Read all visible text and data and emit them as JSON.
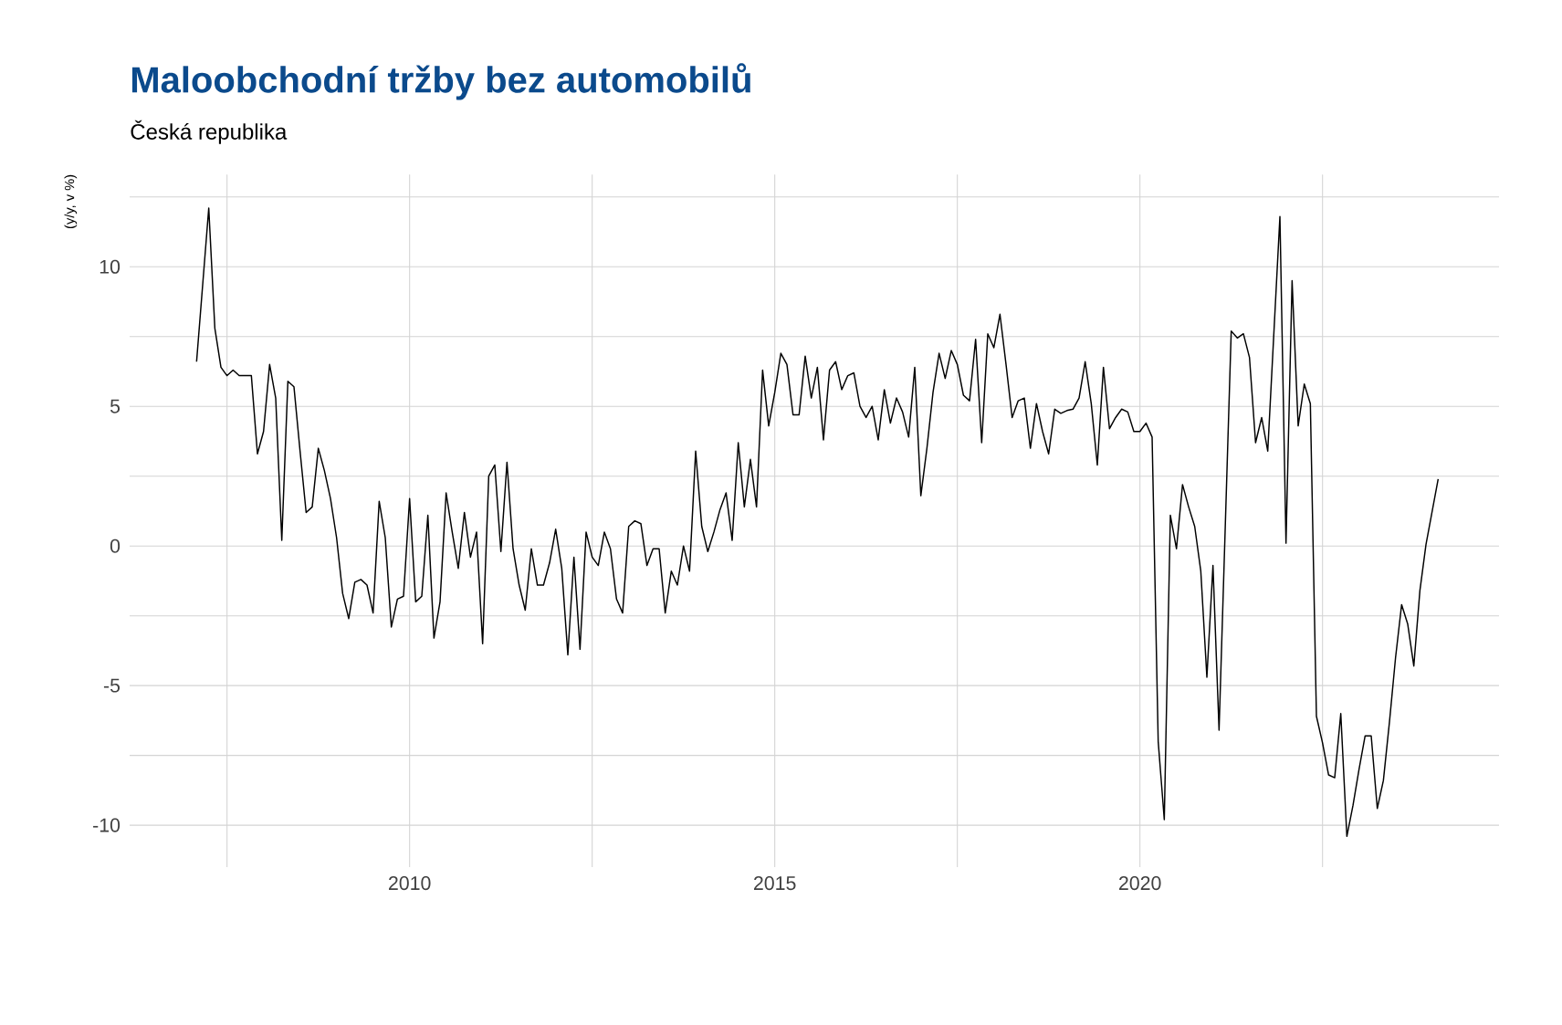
{
  "chart_data": {
    "type": "line",
    "title": "Maloobchodní tržby bez automobilů",
    "subtitle": "Česká republika",
    "ylabel": "(y/y, v %)",
    "x": [
      "2007-02",
      "2007-04",
      "2007-05",
      "2007-06",
      "2007-07",
      "2007-08",
      "2007-09",
      "2007-11",
      "2007-12",
      "2008-01",
      "2008-02",
      "2008-03",
      "2008-04",
      "2008-05",
      "2008-06",
      "2008-07",
      "2008-08",
      "2008-09",
      "2008-10",
      "2008-11",
      "2008-12",
      "2009-01",
      "2009-02",
      "2009-03",
      "2009-04",
      "2009-05",
      "2009-06",
      "2009-07",
      "2009-08",
      "2009-09",
      "2009-10",
      "2009-11",
      "2009-12",
      "2010-01",
      "2010-02",
      "2010-03",
      "2010-04",
      "2010-05",
      "2010-06",
      "2010-07",
      "2010-08",
      "2010-09",
      "2010-10",
      "2010-11",
      "2010-12",
      "2011-01",
      "2011-02",
      "2011-03",
      "2011-04",
      "2011-05",
      "2011-06",
      "2011-07",
      "2011-08",
      "2011-09",
      "2011-10",
      "2011-11",
      "2011-12",
      "2012-01",
      "2012-02",
      "2012-03",
      "2012-04",
      "2012-05",
      "2012-06",
      "2012-07",
      "2012-08",
      "2012-09",
      "2012-10",
      "2012-11",
      "2012-12",
      "2013-01",
      "2013-02",
      "2013-03",
      "2013-04",
      "2013-05",
      "2013-06",
      "2013-07",
      "2013-08",
      "2013-09",
      "2013-10",
      "2013-11",
      "2013-12",
      "2014-01",
      "2014-02",
      "2014-03",
      "2014-04",
      "2014-05",
      "2014-06",
      "2014-07",
      "2014-08",
      "2014-09",
      "2014-10",
      "2014-11",
      "2014-12",
      "2015-01",
      "2015-02",
      "2015-03",
      "2015-04",
      "2015-05",
      "2015-06",
      "2015-07",
      "2015-08",
      "2015-09",
      "2015-10",
      "2015-11",
      "2015-12",
      "2016-01",
      "2016-02",
      "2016-03",
      "2016-04",
      "2016-05",
      "2016-06",
      "2016-07",
      "2016-08",
      "2016-09",
      "2016-10",
      "2016-11",
      "2016-12",
      "2017-01",
      "2017-02",
      "2017-03",
      "2017-04",
      "2017-05",
      "2017-06",
      "2017-07",
      "2017-08",
      "2017-09",
      "2017-10",
      "2017-11",
      "2017-12",
      "2018-01",
      "2018-02",
      "2018-03",
      "2018-04",
      "2018-05",
      "2018-06",
      "2018-07",
      "2018-08",
      "2018-09",
      "2018-10",
      "2018-11",
      "2018-12",
      "2019-01",
      "2019-02",
      "2019-03",
      "2019-04",
      "2019-05",
      "2019-06",
      "2019-07",
      "2019-08",
      "2019-09",
      "2019-10",
      "2019-11",
      "2019-12",
      "2020-01",
      "2020-02",
      "2020-03",
      "2020-04",
      "2020-05",
      "2020-06",
      "2020-07",
      "2020-08",
      "2020-09",
      "2020-10",
      "2020-11",
      "2020-12",
      "2021-01",
      "2021-02",
      "2021-04",
      "2021-05",
      "2021-06",
      "2021-07",
      "2021-08",
      "2021-09",
      "2021-10",
      "2021-12",
      "2022-01",
      "2022-02",
      "2022-03",
      "2022-04",
      "2022-05",
      "2022-06",
      "2022-07",
      "2022-08",
      "2022-09",
      "2022-10",
      "2022-11",
      "2022-12",
      "2023-01",
      "2023-02",
      "2023-03",
      "2023-04",
      "2023-05",
      "2023-06",
      "2023-07",
      "2023-08",
      "2023-09",
      "2023-10",
      "2023-11",
      "2023-12",
      "2024-02"
    ],
    "series": [
      {
        "color": "#000000",
        "values": [
          6.6,
          12.1,
          7.8,
          6.4,
          6.1,
          6.3,
          6.1,
          6.1,
          3.3,
          4.1,
          6.5,
          5.3,
          0.2,
          5.9,
          5.7,
          3.4,
          1.2,
          1.4,
          3.5,
          2.7,
          1.7,
          0.3,
          -1.7,
          -2.6,
          -1.3,
          -1.2,
          -1.4,
          -2.4,
          1.6,
          0.3,
          -2.9,
          -1.9,
          -1.8,
          1.7,
          -2.0,
          -1.8,
          1.1,
          -3.3,
          -2.0,
          1.9,
          0.5,
          -0.8,
          1.2,
          -0.4,
          0.5,
          -3.5,
          2.5,
          2.9,
          -0.2,
          3.0,
          -0.1,
          -1.4,
          -2.3,
          -0.1,
          -1.4,
          -1.4,
          -0.6,
          0.6,
          -0.8,
          -3.9,
          -0.4,
          -3.7,
          0.5,
          -0.4,
          -0.7,
          0.5,
          -0.1,
          -1.9,
          -2.4,
          0.7,
          0.9,
          0.8,
          -0.7,
          -0.1,
          -0.1,
          -2.4,
          -0.9,
          -1.4,
          0.0,
          -0.9,
          3.4,
          0.7,
          -0.2,
          0.5,
          1.3,
          1.9,
          0.2,
          3.7,
          1.4,
          3.1,
          1.4,
          6.3,
          4.3,
          5.5,
          6.9,
          6.5,
          4.7,
          4.7,
          6.8,
          5.3,
          6.4,
          3.8,
          6.3,
          6.6,
          5.6,
          6.1,
          6.2,
          5.0,
          4.6,
          5.0,
          3.8,
          5.6,
          4.4,
          5.3,
          4.8,
          3.9,
          6.4,
          1.8,
          3.5,
          5.5,
          6.9,
          6.0,
          7.0,
          6.5,
          5.4,
          5.2,
          7.4,
          3.7,
          7.6,
          7.1,
          8.3,
          6.5,
          4.6,
          5.2,
          5.3,
          3.5,
          5.1,
          4.1,
          3.3,
          4.9,
          4.75,
          4.85,
          4.9,
          5.3,
          6.6,
          5.1,
          2.9,
          6.4,
          4.2,
          4.6,
          4.9,
          4.8,
          4.1,
          4.1,
          4.4,
          3.9,
          -7.0,
          -9.8,
          1.1,
          -0.1,
          2.2,
          1.4,
          0.7,
          -0.9,
          -4.7,
          -0.7,
          -6.6,
          7.7,
          7.45,
          7.6,
          6.75,
          3.7,
          4.6,
          3.4,
          11.8,
          0.1,
          9.5,
          4.3,
          5.8,
          5.1,
          -6.1,
          -7.05,
          -8.2,
          -8.3,
          -6.0,
          -10.4,
          -9.3,
          -8.0,
          -6.8,
          -6.8,
          -9.4,
          -8.4,
          -6.3,
          -4.0,
          -2.1,
          -2.8,
          -4.3,
          -1.6,
          0.05,
          2.4
        ]
      }
    ],
    "xlim": [
      "2006-03",
      "2024-12"
    ],
    "ylim": [
      -11.5,
      13.3
    ],
    "xticks": [
      {
        "value": "2007-07",
        "label": null
      },
      "2010",
      {
        "value": "2012-07",
        "label": null
      },
      "2015",
      {
        "value": "2017-07",
        "label": null
      },
      "2020",
      {
        "value": "2022-07",
        "label": null
      }
    ],
    "yticks": [
      -10,
      {
        "value": -7.5,
        "label": null
      },
      -5,
      {
        "value": -2.5,
        "label": null
      },
      0,
      {
        "value": 2.5,
        "label": null
      },
      5,
      {
        "value": 7.5,
        "label": null
      },
      10,
      {
        "value": 12.5,
        "label": null
      }
    ],
    "grid": true
  }
}
